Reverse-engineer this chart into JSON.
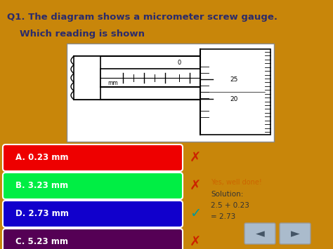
{
  "bg_color": "#C8860A",
  "title_line1": "Q1. The diagram shows a micrometer screw gauge.",
  "title_line2": "Which reading is shown",
  "title_color": "#2B2B6B",
  "options": [
    {
      "label": "A. 0.23 mm",
      "color": "#EE0000",
      "mark": "✗",
      "mark_color": "#CC2200"
    },
    {
      "label": "B. 3.23 mm",
      "color": "#00EE44",
      "mark": "✗",
      "mark_color": "#CC2200"
    },
    {
      "label": "D. 2.73 mm",
      "color": "#1100CC",
      "mark": "✓",
      "mark_color": "#009999"
    },
    {
      "label": "C. 5.23 mm",
      "color": "#550055",
      "mark": "✗",
      "mark_color": "#CC2200"
    }
  ],
  "solution_texts": [
    "Yes, well done!",
    "Solution:",
    "2.5 + 0.23",
    "= 2.73"
  ],
  "solution_color": "#CC6600",
  "solution_body_color": "#333333"
}
